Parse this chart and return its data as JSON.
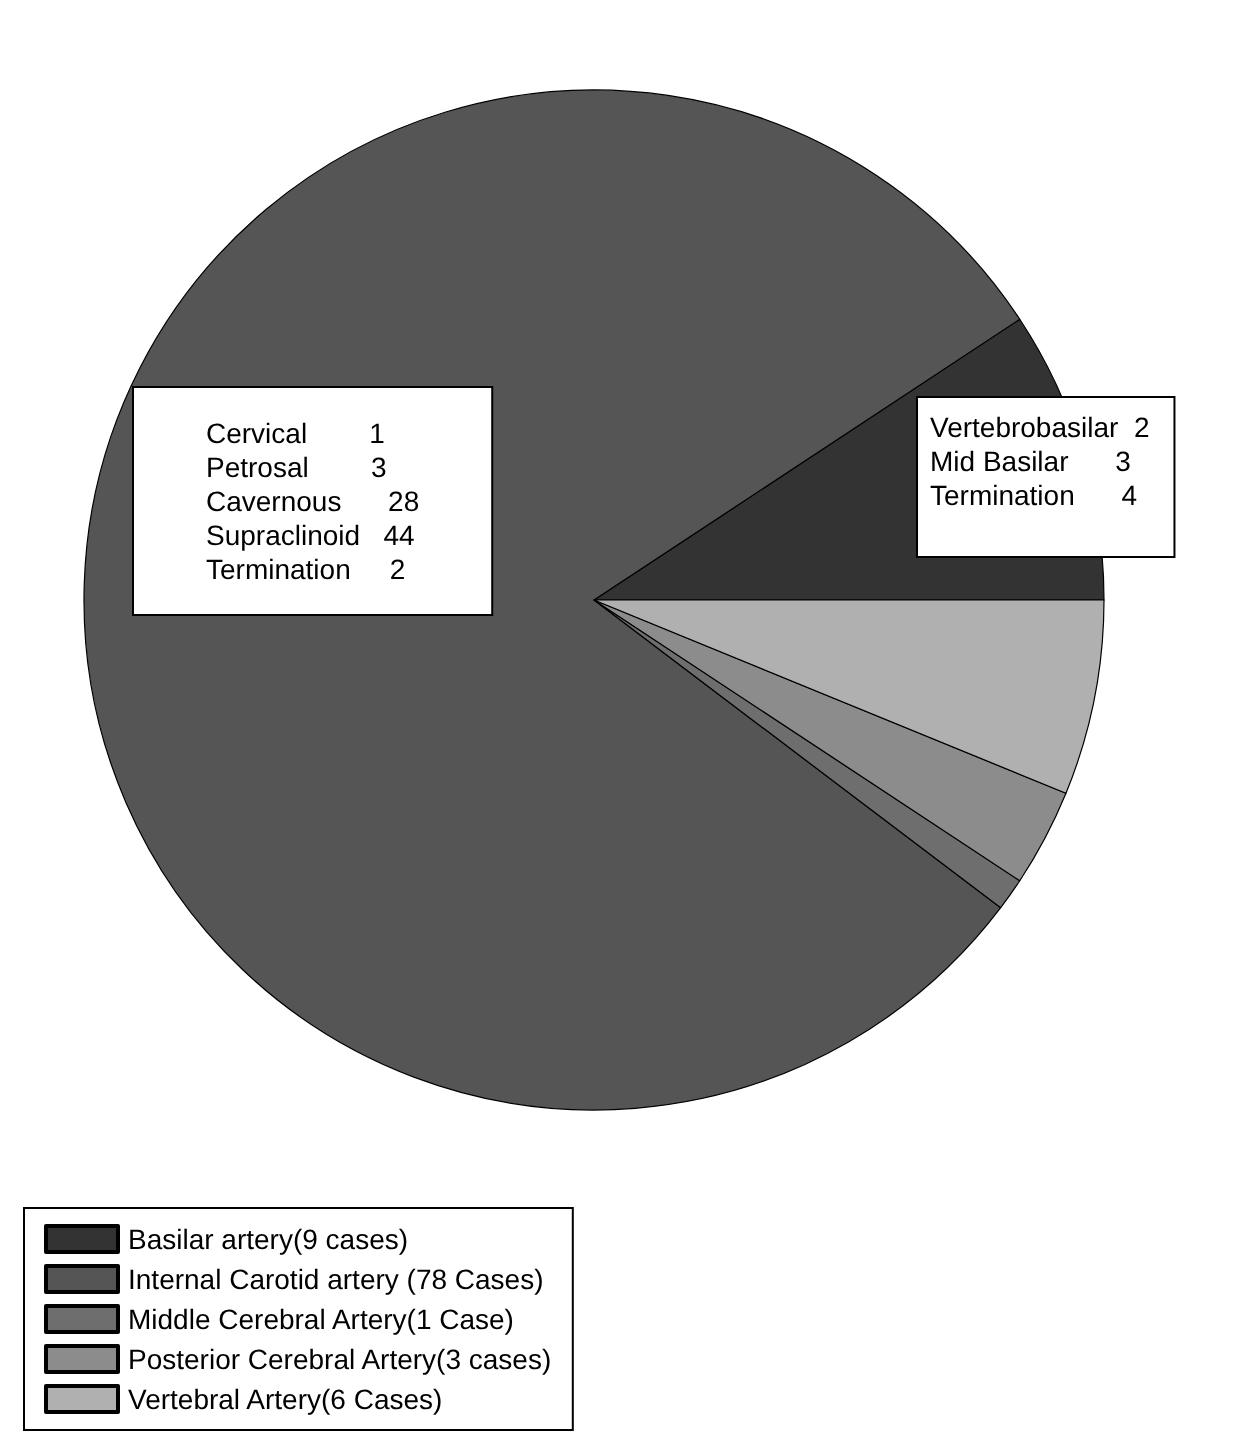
{
  "chart_data": {
    "type": "pie",
    "categories": [
      "Basilar artery(9 cases)",
      "Internal Carotid artery (78 Cases)",
      "Middle Cerebral Artery(1 Case)",
      "Posterior Cerebral Artery(3 cases)",
      "Vertebral Artery(6 Cases)"
    ],
    "values": [
      9,
      78,
      1,
      3,
      6
    ],
    "colors": [
      "#333333",
      "#555555",
      "#6e6e6e",
      "#8c8c8c",
      "#b0b0b0"
    ],
    "legend": "bottom left",
    "annotations": [
      "Cervical        1\nPetrosal        3\nCavernous      28\nSupraclinoid   44\nTermination     2",
      "Vertebrobasilar  2\nMid Basilar      3\nTermination      4"
    ]
  }
}
